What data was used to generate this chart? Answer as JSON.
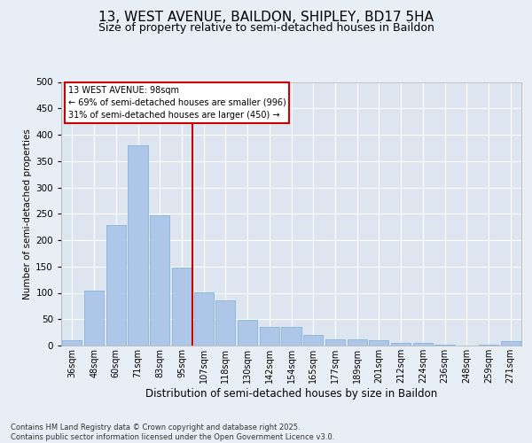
{
  "title_line1": "13, WEST AVENUE, BAILDON, SHIPLEY, BD17 5HA",
  "title_line2": "Size of property relative to semi-detached houses in Baildon",
  "xlabel": "Distribution of semi-detached houses by size in Baildon",
  "ylabel": "Number of semi-detached properties",
  "footer": "Contains HM Land Registry data © Crown copyright and database right 2025.\nContains public sector information licensed under the Open Government Licence v3.0.",
  "categories": [
    "36sqm",
    "48sqm",
    "60sqm",
    "71sqm",
    "83sqm",
    "95sqm",
    "107sqm",
    "118sqm",
    "130sqm",
    "142sqm",
    "154sqm",
    "165sqm",
    "177sqm",
    "189sqm",
    "201sqm",
    "212sqm",
    "224sqm",
    "236sqm",
    "248sqm",
    "259sqm",
    "271sqm"
  ],
  "values": [
    10,
    105,
    228,
    380,
    247,
    148,
    101,
    85,
    48,
    36,
    36,
    20,
    12,
    12,
    10,
    5,
    5,
    2,
    0,
    2,
    8
  ],
  "bar_color": "#aec6e8",
  "bar_edge_color": "#7aadd4",
  "vline_x": 5.5,
  "vline_color": "#cc0000",
  "annotation_title": "13 WEST AVENUE: 98sqm",
  "annotation_line1": "← 69% of semi-detached houses are smaller (996)",
  "annotation_line2": "31% of semi-detached houses are larger (450) →",
  "annotation_box_color": "#cc0000",
  "ylim": [
    0,
    500
  ],
  "yticks": [
    0,
    50,
    100,
    150,
    200,
    250,
    300,
    350,
    400,
    450,
    500
  ],
  "bg_color": "#e8eef5",
  "plot_bg_color": "#dde6f0",
  "title_fontsize": 11,
  "subtitle_fontsize": 9
}
